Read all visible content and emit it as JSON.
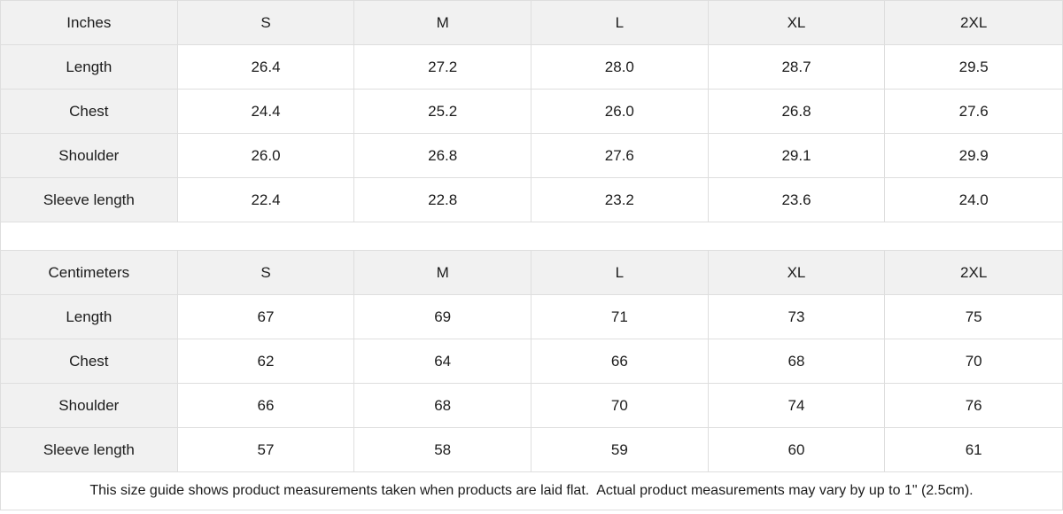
{
  "tables": [
    {
      "unit_label": "Inches",
      "sizes": [
        "S",
        "M",
        "L",
        "XL",
        "2XL"
      ],
      "rows": [
        {
          "label": "Length",
          "values": [
            "26.4",
            "27.2",
            "28.0",
            "28.7",
            "29.5"
          ]
        },
        {
          "label": "Chest",
          "values": [
            "24.4",
            "25.2",
            "26.0",
            "26.8",
            "27.6"
          ]
        },
        {
          "label": "Shoulder",
          "values": [
            "26.0",
            "26.8",
            "27.6",
            "29.1",
            "29.9"
          ]
        },
        {
          "label": "Sleeve length",
          "values": [
            "22.4",
            "22.8",
            "23.2",
            "23.6",
            "24.0"
          ]
        }
      ]
    },
    {
      "unit_label": "Centimeters",
      "sizes": [
        "S",
        "M",
        "L",
        "XL",
        "2XL"
      ],
      "rows": [
        {
          "label": "Length",
          "values": [
            "67",
            "69",
            "71",
            "73",
            "75"
          ]
        },
        {
          "label": "Chest",
          "values": [
            "62",
            "64",
            "66",
            "68",
            "70"
          ]
        },
        {
          "label": "Shoulder",
          "values": [
            "66",
            "68",
            "70",
            "74",
            "76"
          ]
        },
        {
          "label": "Sleeve length",
          "values": [
            "57",
            "58",
            "59",
            "60",
            "61"
          ]
        }
      ]
    }
  ],
  "footer": {
    "note": "This size guide shows product measurements taken when products are laid flat.  Actual product measurements may vary by up to 1\" (2.5cm)."
  },
  "colors": {
    "header_bg": "#f1f1f1",
    "cell_bg": "#ffffff",
    "border": "#dedede",
    "text": "#1c1c1c"
  }
}
